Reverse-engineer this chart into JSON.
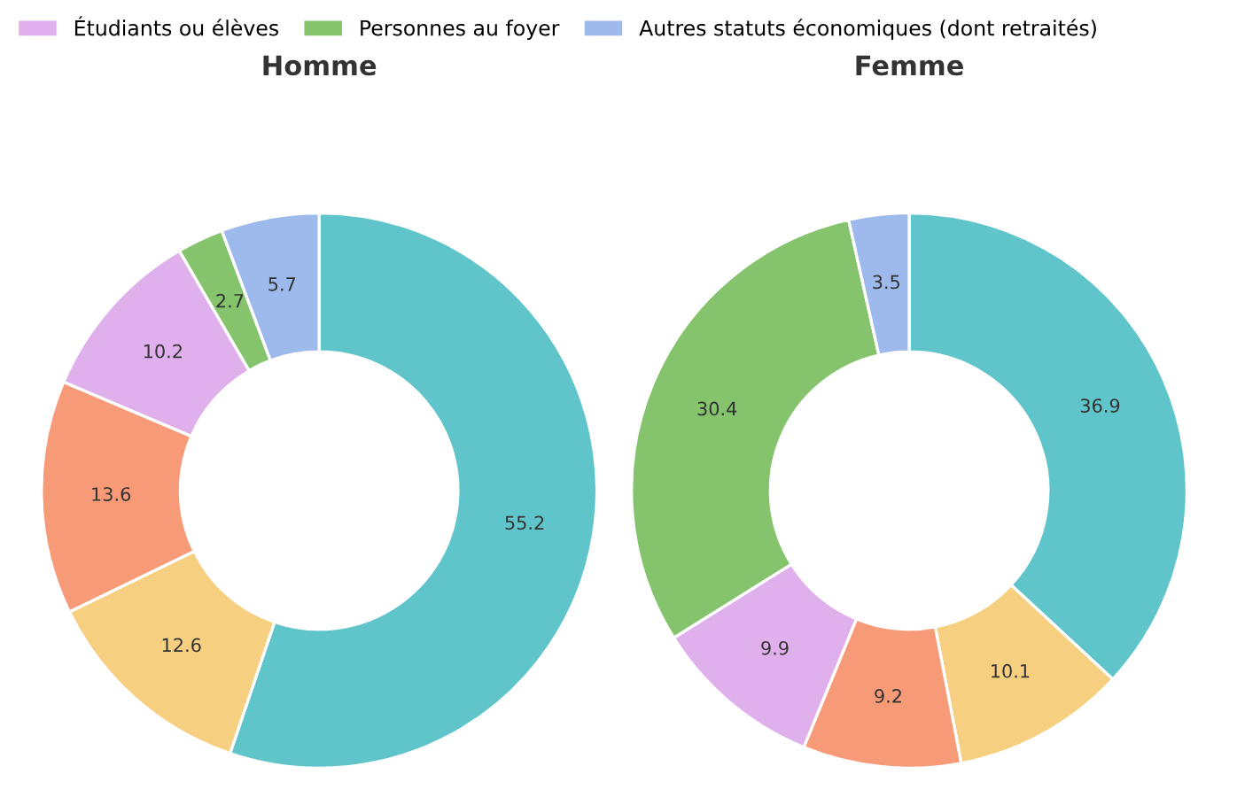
{
  "chart_data": [
    {
      "type": "donut",
      "title": "Homme",
      "categories": [
        null,
        null,
        null,
        "Étudiants ou élèves",
        "Personnes au foyer",
        "Autres statuts économiques (dont retraités)"
      ],
      "values": [
        55.2,
        12.6,
        13.6,
        10.2,
        2.7,
        5.7
      ],
      "colors": [
        "#5fc5ca",
        "#f7cf80",
        "#f79a77",
        "#dfb0ec",
        "#85c46c",
        "#9eb9ec"
      ],
      "data_labels": true,
      "legend": "top"
    },
    {
      "type": "donut",
      "title": "Femme",
      "categories": [
        null,
        null,
        null,
        null,
        null,
        null
      ],
      "values": [
        36.9,
        10.1,
        9.2,
        9.9,
        30.4,
        3.5
      ],
      "colors": [
        "#5fc5ca",
        "#f7cf80",
        "#f79a77",
        "#dfb0ec",
        "#85c46c",
        "#9eb9ec"
      ],
      "data_labels": true
    }
  ]
}
